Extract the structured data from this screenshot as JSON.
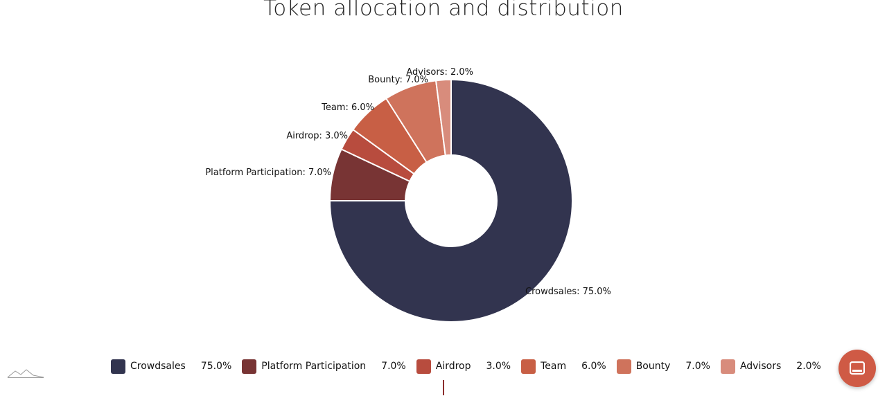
{
  "chart_data": {
    "type": "pie",
    "donut": true,
    "title": "Token allocation and distribution",
    "categories": [
      "Crowdsales",
      "Platform Participation",
      "Airdrop",
      "Team",
      "Bounty",
      "Advisors"
    ],
    "values": [
      75.0,
      7.0,
      3.0,
      6.0,
      7.0,
      2.0
    ],
    "labels": [
      "Crowdsales: 75.0%",
      "Platform Participation: 7.0%",
      "Airdrop: 3.0%",
      "Team: 6.0%",
      "Bounty: 7.0%",
      "Advisors: 2.0%"
    ],
    "colors": [
      "#32344f",
      "#783434",
      "#b84c3e",
      "#c85f45",
      "#cf735c",
      "#d88c7c"
    ],
    "legend": {
      "placement": "bottom",
      "items": [
        {
          "name": "Crowdsales",
          "value": "75.0%"
        },
        {
          "name": "Platform Participation",
          "value": "7.0%"
        },
        {
          "name": "Airdrop",
          "value": "3.0%"
        },
        {
          "name": "Team",
          "value": "6.0%"
        },
        {
          "name": "Bounty",
          "value": "7.0%"
        },
        {
          "name": "Advisors",
          "value": "2.0%"
        }
      ]
    }
  },
  "icons": {
    "logo": "chart-logo-icon",
    "chat": "chat-icon"
  },
  "colors": {
    "chat_button": "#cf5a45",
    "cursor": "#8b2d2d"
  }
}
